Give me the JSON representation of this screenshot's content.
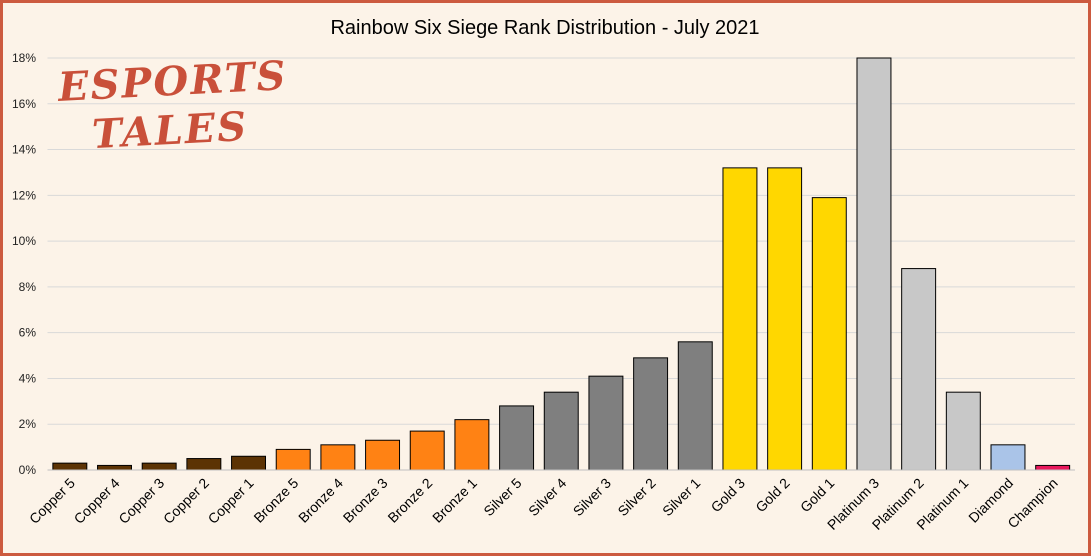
{
  "logo": {
    "line1": "ESPORTS",
    "line2": "TALES"
  },
  "chart_data": {
    "type": "bar",
    "title": "Rainbow Six Siege Rank Distribution - July 2021",
    "xlabel": "",
    "ylabel": "",
    "ylim": [
      0,
      18
    ],
    "yticks": [
      "0%",
      "2%",
      "4%",
      "6%",
      "8%",
      "10%",
      "12%",
      "14%",
      "16%",
      "18%"
    ],
    "grid": true,
    "categories": [
      "Copper 5",
      "Copper 4",
      "Copper 3",
      "Copper 2",
      "Copper 1",
      "Bronze 5",
      "Bronze 4",
      "Bronze 3",
      "Bronze 2",
      "Bronze 1",
      "Silver 5",
      "Silver 4",
      "Silver 3",
      "Silver 2",
      "Silver 1",
      "Gold 3",
      "Gold 2",
      "Gold 1",
      "Platinum 3",
      "Platinum 2",
      "Platinum 1",
      "Diamond",
      "Champion"
    ],
    "values": [
      0.3,
      0.2,
      0.3,
      0.5,
      0.6,
      0.9,
      1.1,
      1.3,
      1.7,
      2.2,
      2.8,
      3.4,
      4.1,
      4.9,
      5.6,
      13.2,
      13.2,
      11.9,
      18.0,
      8.8,
      3.4,
      1.1,
      0.2
    ],
    "colors": [
      "#5c3304",
      "#5c3304",
      "#5c3304",
      "#5c3304",
      "#5c3304",
      "#ff8214",
      "#ff8214",
      "#ff8214",
      "#ff8214",
      "#ff8214",
      "#7f7f7f",
      "#7f7f7f",
      "#7f7f7f",
      "#7f7f7f",
      "#7f7f7f",
      "#ffd700",
      "#ffd700",
      "#ffd700",
      "#c8c8c8",
      "#c8c8c8",
      "#c8c8c8",
      "#aac4e8",
      "#e8185c"
    ]
  }
}
